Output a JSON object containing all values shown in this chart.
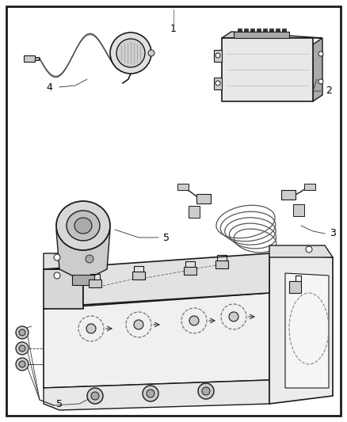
{
  "bg": "#ffffff",
  "border": "#000000",
  "lc": "#1a1a1a",
  "gray_light": "#e8e8e8",
  "gray_mid": "#cccccc",
  "gray_dark": "#aaaaaa",
  "fig_w": 4.38,
  "fig_h": 5.33,
  "dpi": 100
}
